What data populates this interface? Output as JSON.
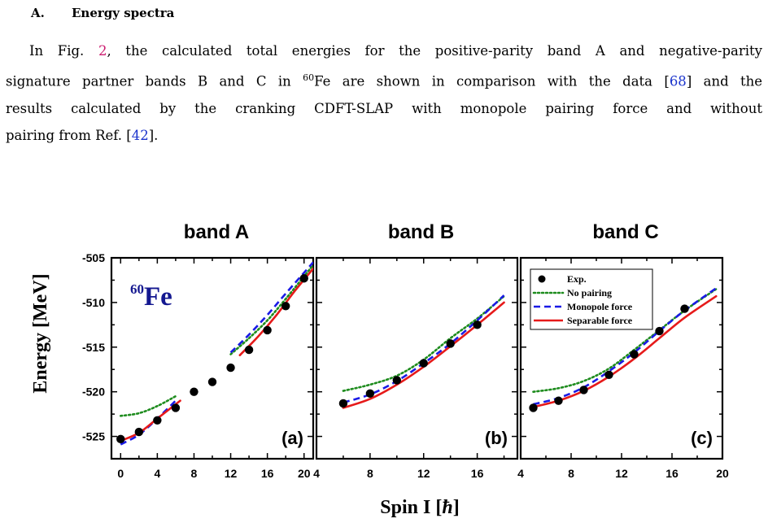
{
  "section": {
    "number": "A.",
    "title": "Energy spectra"
  },
  "paragraph": {
    "l1_pre": "In Fig. ",
    "l1_fig": "2",
    "l1_post": ", the calculated total energies for the positive-parity band A and negative-parity",
    "l2_pre": "signature partner bands B and C in ",
    "l2_sup": "60",
    "l2_el": "Fe are shown in comparison with the data [",
    "l2_ref": "68",
    "l2_post": "] and the",
    "l3": "results calculated by the cranking CDFT-SLAP with monopole pairing force and without",
    "l4_pre": "pairing from Ref. [",
    "l4_ref": "42",
    "l4_post": "]."
  },
  "figure": {
    "ylabel": "Energy [MeV]",
    "xlabel": "Spin I [",
    "xlabel_hbar": "ħ",
    "xlabel_close": "]",
    "nucleus_mass": "60",
    "nucleus_symbol": "Fe",
    "colors": {
      "exp": "#000000",
      "no_pairing": "#1e8c1e",
      "monopole": "#1a1ae6",
      "separable": "#e61a1a",
      "nucleus": "#141890"
    },
    "legend": [
      {
        "label": "Exp.",
        "style": "dot"
      },
      {
        "label": "No pairing",
        "style": "dotted",
        "color": "#1e8c1e"
      },
      {
        "label": "Monopole force",
        "style": "dashed",
        "color": "#1a1ae6"
      },
      {
        "label": "Separable force",
        "style": "solid",
        "color": "#e61a1a"
      }
    ],
    "panels_meta": [
      {
        "title": "band A",
        "tag": "(a)"
      },
      {
        "title": "band B",
        "tag": "(b)"
      },
      {
        "title": "band C",
        "tag": "(c)"
      }
    ]
  },
  "chart_data": [
    {
      "type": "line",
      "title": "band A",
      "panel_label": "(a)",
      "xlabel": "Spin I [ħ]",
      "ylabel": "Energy [MeV]",
      "xlim": [
        -1,
        21
      ],
      "ylim": [
        -527.5,
        -505
      ],
      "x_ticks": [
        0,
        4,
        8,
        12,
        16,
        20
      ],
      "y_ticks": [
        -505,
        -510,
        -515,
        -520,
        -525
      ],
      "series": [
        {
          "name": "Exp.",
          "style": "marker",
          "x": [
            0,
            2,
            4,
            6,
            8,
            10,
            12,
            14,
            16,
            18,
            20
          ],
          "y": [
            -525.3,
            -524.5,
            -523.2,
            -521.8,
            -520.0,
            -518.9,
            -517.3,
            -515.3,
            -513.1,
            -510.4,
            -507.3
          ]
        },
        {
          "name": "No pairing",
          "style": "dotted",
          "segments": [
            {
              "x": [
                0,
                2,
                4,
                6
              ],
              "y": [
                -522.7,
                -522.4,
                -521.6,
                -520.5
              ]
            },
            {
              "x": [
                12,
                14,
                16,
                18,
                21
              ],
              "y": [
                -515.8,
                -514.0,
                -512.0,
                -509.6,
                -505.8
              ]
            }
          ]
        },
        {
          "name": "Monopole force",
          "style": "dashed",
          "segments": [
            {
              "x": [
                0,
                2,
                4,
                6
              ],
              "y": [
                -525.9,
                -524.8,
                -523.0,
                -521.0
              ]
            },
            {
              "x": [
                12,
                14,
                16,
                18,
                21
              ],
              "y": [
                -515.6,
                -513.6,
                -511.4,
                -509.0,
                -505.5
              ]
            }
          ]
        },
        {
          "name": "Separable force",
          "style": "solid",
          "segments": [
            {
              "x": [
                0,
                2,
                4,
                6.5
              ],
              "y": [
                -525.5,
                -524.6,
                -523.0,
                -521.0
              ]
            },
            {
              "x": [
                13,
                15,
                17,
                19,
                21
              ],
              "y": [
                -515.9,
                -513.8,
                -511.4,
                -508.7,
                -506.2
              ]
            }
          ]
        }
      ]
    },
    {
      "type": "line",
      "title": "band B",
      "panel_label": "(b)",
      "xlim": [
        4,
        19
      ],
      "ylim": [
        -527.5,
        -505
      ],
      "x_ticks": [
        4,
        8,
        12,
        16
      ],
      "series": [
        {
          "name": "Exp.",
          "style": "marker",
          "x": [
            6,
            8,
            10,
            12,
            14,
            16
          ],
          "y": [
            -521.3,
            -520.2,
            -518.7,
            -516.8,
            -514.6,
            -512.5
          ]
        },
        {
          "name": "No pairing",
          "style": "dotted",
          "segments": [
            {
              "x": [
                6,
                8,
                10,
                12,
                14,
                16,
                18
              ],
              "y": [
                -519.9,
                -519.2,
                -518.2,
                -516.4,
                -514.0,
                -511.8,
                -509.3
              ]
            }
          ]
        },
        {
          "name": "Monopole force",
          "style": "dashed",
          "segments": [
            {
              "x": [
                6,
                8,
                10,
                12,
                14,
                16,
                18
              ],
              "y": [
                -521.2,
                -520.3,
                -518.8,
                -516.8,
                -514.6,
                -512.0,
                -509.2
              ]
            }
          ]
        },
        {
          "name": "Separable force",
          "style": "solid",
          "segments": [
            {
              "x": [
                6,
                8,
                10,
                12,
                14,
                16,
                18
              ],
              "y": [
                -521.8,
                -520.8,
                -519.2,
                -517.2,
                -514.9,
                -512.5,
                -510.0
              ]
            }
          ]
        }
      ]
    },
    {
      "type": "line",
      "title": "band C",
      "panel_label": "(c)",
      "xlim": [
        4,
        20
      ],
      "ylim": [
        -527.5,
        -505
      ],
      "x_ticks": [
        4,
        8,
        12,
        16,
        20
      ],
      "series": [
        {
          "name": "Exp.",
          "style": "marker",
          "x": [
            5,
            7,
            9,
            11,
            13,
            15,
            17
          ],
          "y": [
            -521.8,
            -521.0,
            -519.8,
            -518.1,
            -515.8,
            -513.2,
            -510.7
          ]
        },
        {
          "name": "No pairing",
          "style": "dotted",
          "segments": [
            {
              "x": [
                5,
                7,
                9,
                11,
                13,
                15,
                17,
                19.5
              ],
              "y": [
                -520.0,
                -519.6,
                -518.8,
                -517.4,
                -515.3,
                -513.1,
                -510.9,
                -508.5
              ]
            }
          ]
        },
        {
          "name": "Monopole force",
          "style": "dashed",
          "segments": [
            {
              "x": [
                5,
                7,
                9,
                11,
                13,
                15,
                17,
                19.5
              ],
              "y": [
                -521.4,
                -520.7,
                -519.5,
                -517.7,
                -515.6,
                -513.2,
                -510.9,
                -508.4
              ]
            }
          ]
        },
        {
          "name": "Separable force",
          "style": "solid",
          "segments": [
            {
              "x": [
                5,
                7,
                9,
                11,
                13,
                15,
                17,
                19.5
              ],
              "y": [
                -521.7,
                -521.0,
                -519.9,
                -518.3,
                -516.3,
                -514.0,
                -511.7,
                -509.3
              ]
            }
          ]
        }
      ]
    }
  ]
}
